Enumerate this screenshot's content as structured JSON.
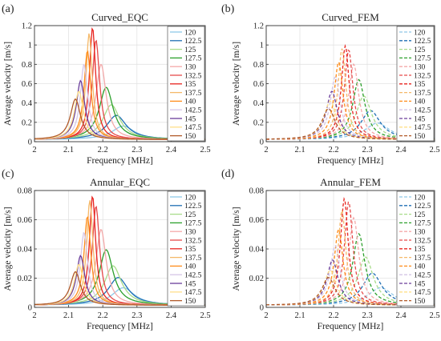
{
  "legend_labels": [
    "120",
    "122.5",
    "125",
    "127.5",
    "130",
    "132.5",
    "135",
    "137.5",
    "140",
    "142.5",
    "145",
    "147.5",
    "150"
  ],
  "series_colors": [
    "#8fc8e8",
    "#1f6fb4",
    "#a8dc8a",
    "#2ca02c",
    "#f4a9a9",
    "#e64a4a",
    "#e8231e",
    "#f5b869",
    "#ff8c1a",
    "#d5c6e6",
    "#6a3d9a",
    "#ffe08a",
    "#b15928"
  ],
  "chart_data": [
    {
      "panel": "(a)",
      "title": "Curved_EQC",
      "type": "line",
      "style": "solid",
      "xlabel": "Frequency [MHz]",
      "ylabel": "Average velocity [m/s]",
      "xlim": [
        2,
        2.5
      ],
      "ylim": [
        0,
        1.2
      ],
      "xticks": [
        "2",
        "2.1",
        "2.2",
        "2.3",
        "2.4",
        "2.5"
      ],
      "yticks": [
        "0",
        "0.2",
        "0.4",
        "0.6",
        "0.8",
        "1",
        "1.2"
      ],
      "grid": true,
      "legend": "top-right",
      "series": [
        {
          "name": "120",
          "peak_x": 2.26,
          "peak_y": 0.14,
          "gamma": 0.04
        },
        {
          "name": "122.5",
          "peak_x": 2.24,
          "peak_y": 0.25,
          "gamma": 0.035
        },
        {
          "name": "125",
          "peak_x": 2.225,
          "peak_y": 0.36,
          "gamma": 0.03
        },
        {
          "name": "127.5",
          "peak_x": 2.21,
          "peak_y": 0.54,
          "gamma": 0.025
        },
        {
          "name": "130",
          "peak_x": 2.195,
          "peak_y": 0.78,
          "gamma": 0.018
        },
        {
          "name": "132.5",
          "peak_x": 2.18,
          "peak_y": 1.03,
          "gamma": 0.013
        },
        {
          "name": "135",
          "peak_x": 2.17,
          "peak_y": 1.16,
          "gamma": 0.011
        },
        {
          "name": "137.5",
          "peak_x": 2.16,
          "peak_y": 1.1,
          "gamma": 0.011
        },
        {
          "name": "140",
          "peak_x": 2.155,
          "peak_y": 0.92,
          "gamma": 0.012
        },
        {
          "name": "142.5",
          "peak_x": 2.145,
          "peak_y": 0.78,
          "gamma": 0.013
        },
        {
          "name": "145",
          "peak_x": 2.135,
          "peak_y": 0.61,
          "gamma": 0.015
        },
        {
          "name": "147.5",
          "peak_x": 2.13,
          "peak_y": 0.5,
          "gamma": 0.016
        },
        {
          "name": "150",
          "peak_x": 2.12,
          "peak_y": 0.42,
          "gamma": 0.018
        }
      ]
    },
    {
      "panel": "(b)",
      "title": "Curved_FEM",
      "type": "line",
      "style": "dashed",
      "xlabel": "Frequency [MHz]",
      "ylabel": "Average velocity [m/s]",
      "xlim": [
        2,
        2.5
      ],
      "ylim": [
        0,
        1.2
      ],
      "xticks": [
        "2",
        "2.1",
        "2.2",
        "2.3",
        "2.4",
        "2.5"
      ],
      "yticks": [
        "0",
        "0.2",
        "0.4",
        "0.6",
        "0.8",
        "1",
        "1.2"
      ],
      "grid": true,
      "legend": "top-right",
      "series": [
        {
          "name": "120",
          "peak_x": 2.33,
          "peak_y": 0.17,
          "gamma": 0.045
        },
        {
          "name": "122.5",
          "peak_x": 2.31,
          "peak_y": 0.3,
          "gamma": 0.035
        },
        {
          "name": "125",
          "peak_x": 2.29,
          "peak_y": 0.45,
          "gamma": 0.028
        },
        {
          "name": "127.5",
          "peak_x": 2.275,
          "peak_y": 0.62,
          "gamma": 0.022
        },
        {
          "name": "130",
          "peak_x": 2.26,
          "peak_y": 0.78,
          "gamma": 0.018
        },
        {
          "name": "132.5",
          "peak_x": 2.245,
          "peak_y": 0.93,
          "gamma": 0.015
        },
        {
          "name": "135",
          "peak_x": 2.235,
          "peak_y": 0.97,
          "gamma": 0.014
        },
        {
          "name": "137.5",
          "peak_x": 2.225,
          "peak_y": 0.94,
          "gamma": 0.014
        },
        {
          "name": "140",
          "peak_x": 2.215,
          "peak_y": 0.8,
          "gamma": 0.016
        },
        {
          "name": "142.5",
          "peak_x": 2.205,
          "peak_y": 0.65,
          "gamma": 0.018
        },
        {
          "name": "145",
          "peak_x": 2.195,
          "peak_y": 0.5,
          "gamma": 0.02
        },
        {
          "name": "147.5",
          "peak_x": 2.19,
          "peak_y": 0.4,
          "gamma": 0.022
        },
        {
          "name": "150",
          "peak_x": 2.185,
          "peak_y": 0.32,
          "gamma": 0.024
        }
      ]
    },
    {
      "panel": "(c)",
      "title": "Annular_EQC",
      "type": "line",
      "style": "solid",
      "xlabel": "Frequency [MHz]",
      "ylabel": "Average velocity [m/s]",
      "xlim": [
        2,
        2.5
      ],
      "ylim": [
        0,
        0.08
      ],
      "xticks": [
        "2",
        "2.1",
        "2.2",
        "2.3",
        "2.4",
        "2.5"
      ],
      "yticks": [
        "0",
        "0.02",
        "0.04",
        "0.06",
        "0.08"
      ],
      "grid": true,
      "legend": "top-right",
      "series": [
        {
          "name": "120",
          "peak_x": 2.26,
          "peak_y": 0.012,
          "gamma": 0.04
        },
        {
          "name": "122.5",
          "peak_x": 2.245,
          "peak_y": 0.019,
          "gamma": 0.035
        },
        {
          "name": "125",
          "peak_x": 2.23,
          "peak_y": 0.027,
          "gamma": 0.03
        },
        {
          "name": "127.5",
          "peak_x": 2.21,
          "peak_y": 0.038,
          "gamma": 0.025
        },
        {
          "name": "130",
          "peak_x": 2.195,
          "peak_y": 0.052,
          "gamma": 0.018
        },
        {
          "name": "132.5",
          "peak_x": 2.18,
          "peak_y": 0.068,
          "gamma": 0.013
        },
        {
          "name": "135",
          "peak_x": 2.17,
          "peak_y": 0.075,
          "gamma": 0.011
        },
        {
          "name": "137.5",
          "peak_x": 2.162,
          "peak_y": 0.072,
          "gamma": 0.011
        },
        {
          "name": "140",
          "peak_x": 2.155,
          "peak_y": 0.061,
          "gamma": 0.012
        },
        {
          "name": "142.5",
          "peak_x": 2.145,
          "peak_y": 0.05,
          "gamma": 0.013
        },
        {
          "name": "145",
          "peak_x": 2.135,
          "peak_y": 0.034,
          "gamma": 0.015
        },
        {
          "name": "147.5",
          "peak_x": 2.13,
          "peak_y": 0.028,
          "gamma": 0.016
        },
        {
          "name": "150",
          "peak_x": 2.12,
          "peak_y": 0.023,
          "gamma": 0.018
        }
      ]
    },
    {
      "panel": "(d)",
      "title": "Annular_FEM",
      "type": "line",
      "style": "dashed",
      "xlabel": "Frequency [MHz]",
      "ylabel": "Average velocity [m/s]",
      "xlim": [
        2,
        2.5
      ],
      "ylim": [
        0,
        0.08
      ],
      "xticks": [
        "2",
        "2.1",
        "2.2",
        "2.3",
        "2.4",
        "2.5"
      ],
      "yticks": [
        "0",
        "0.02",
        "0.04",
        "0.06",
        "0.08"
      ],
      "grid": true,
      "legend": "top-right",
      "series": [
        {
          "name": "120",
          "peak_x": 2.34,
          "peak_y": 0.012,
          "gamma": 0.045
        },
        {
          "name": "122.5",
          "peak_x": 2.315,
          "peak_y": 0.022,
          "gamma": 0.035
        },
        {
          "name": "125",
          "peak_x": 2.295,
          "peak_y": 0.033,
          "gamma": 0.028
        },
        {
          "name": "127.5",
          "peak_x": 2.275,
          "peak_y": 0.049,
          "gamma": 0.022
        },
        {
          "name": "130",
          "peak_x": 2.26,
          "peak_y": 0.06,
          "gamma": 0.018
        },
        {
          "name": "132.5",
          "peak_x": 2.245,
          "peak_y": 0.071,
          "gamma": 0.015
        },
        {
          "name": "135",
          "peak_x": 2.232,
          "peak_y": 0.073,
          "gamma": 0.014
        },
        {
          "name": "137.5",
          "peak_x": 2.225,
          "peak_y": 0.065,
          "gamma": 0.014
        },
        {
          "name": "140",
          "peak_x": 2.215,
          "peak_y": 0.052,
          "gamma": 0.016
        },
        {
          "name": "142.5",
          "peak_x": 2.205,
          "peak_y": 0.041,
          "gamma": 0.018
        },
        {
          "name": "145",
          "peak_x": 2.197,
          "peak_y": 0.031,
          "gamma": 0.02
        },
        {
          "name": "147.5",
          "peak_x": 2.19,
          "peak_y": 0.024,
          "gamma": 0.022
        },
        {
          "name": "150",
          "peak_x": 2.185,
          "peak_y": 0.019,
          "gamma": 0.024
        }
      ]
    }
  ]
}
